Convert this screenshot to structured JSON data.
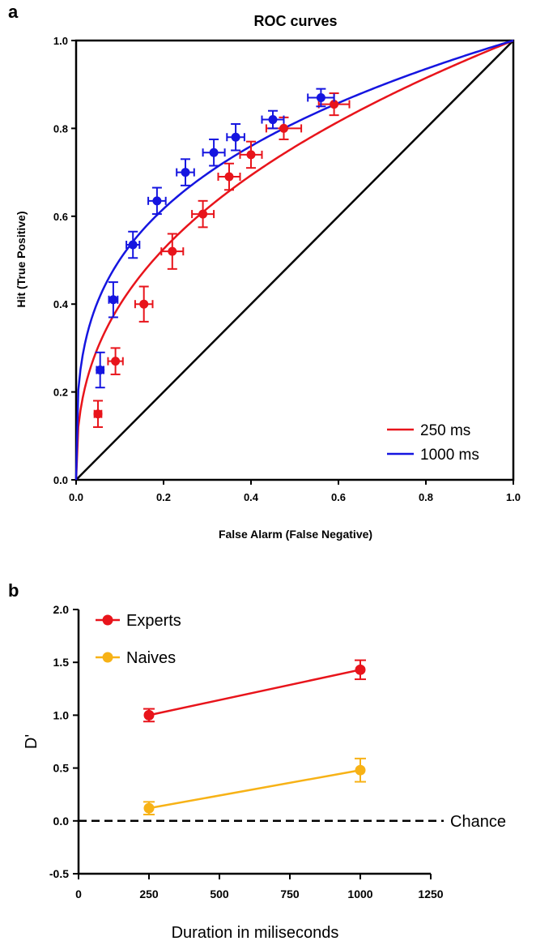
{
  "colors": {
    "red": "#e8141b",
    "blue": "#1515e0",
    "orange": "#f7b216",
    "black": "#000000"
  },
  "chart_data": [
    {
      "panel_label": "a",
      "type": "scatter",
      "title": "ROC curves",
      "xlabel": "False Alarm (False Negative)",
      "ylabel": "Hit (True Positive)",
      "xlim": [
        0,
        1
      ],
      "ylim": [
        0,
        1
      ],
      "xticks": [
        "0.0",
        "0.2",
        "0.4",
        "0.6",
        "0.8",
        "1.0"
      ],
      "yticks": [
        "0.0",
        "0.2",
        "0.4",
        "0.6",
        "0.8",
        "1.0"
      ],
      "legend_position": "bottom-right",
      "diagonal": [
        [
          0,
          0
        ],
        [
          1,
          1
        ]
      ],
      "series": [
        {
          "name": "250 ms",
          "color": "#e8141b",
          "fit_exponent": 0.4,
          "points": [
            {
              "x": 0.05,
              "y": 0.15,
              "xerr": 0.008,
              "yerr": 0.03
            },
            {
              "x": 0.09,
              "y": 0.27,
              "xerr": 0.017,
              "yerr": 0.03
            },
            {
              "x": 0.155,
              "y": 0.4,
              "xerr": 0.02,
              "yerr": 0.04
            },
            {
              "x": 0.22,
              "y": 0.52,
              "xerr": 0.025,
              "yerr": 0.04
            },
            {
              "x": 0.29,
              "y": 0.605,
              "xerr": 0.025,
              "yerr": 0.03
            },
            {
              "x": 0.35,
              "y": 0.69,
              "xerr": 0.025,
              "yerr": 0.03
            },
            {
              "x": 0.4,
              "y": 0.74,
              "xerr": 0.025,
              "yerr": 0.03
            },
            {
              "x": 0.475,
              "y": 0.8,
              "xerr": 0.04,
              "yerr": 0.025
            },
            {
              "x": 0.59,
              "y": 0.855,
              "xerr": 0.035,
              "yerr": 0.025
            }
          ]
        },
        {
          "name": "1000 ms",
          "color": "#1515e0",
          "fit_exponent": 0.3,
          "points": [
            {
              "x": 0.055,
              "y": 0.25,
              "xerr": 0.008,
              "yerr": 0.04
            },
            {
              "x": 0.085,
              "y": 0.41,
              "xerr": 0.01,
              "yerr": 0.04
            },
            {
              "x": 0.13,
              "y": 0.535,
              "xerr": 0.015,
              "yerr": 0.03
            },
            {
              "x": 0.185,
              "y": 0.635,
              "xerr": 0.02,
              "yerr": 0.03
            },
            {
              "x": 0.25,
              "y": 0.7,
              "xerr": 0.02,
              "yerr": 0.03
            },
            {
              "x": 0.315,
              "y": 0.745,
              "xerr": 0.025,
              "yerr": 0.03
            },
            {
              "x": 0.365,
              "y": 0.78,
              "xerr": 0.02,
              "yerr": 0.03
            },
            {
              "x": 0.45,
              "y": 0.82,
              "xerr": 0.025,
              "yerr": 0.02
            },
            {
              "x": 0.56,
              "y": 0.87,
              "xerr": 0.03,
              "yerr": 0.02
            }
          ]
        }
      ]
    },
    {
      "panel_label": "b",
      "type": "line",
      "xlabel": "Duration in miliseconds",
      "ylabel": "D'",
      "xlim": [
        0,
        1250
      ],
      "ylim": [
        -0.5,
        2.0
      ],
      "xticks": [
        "0",
        "250",
        "500",
        "750",
        "1000",
        "1250"
      ],
      "yticks": [
        "-0.5",
        "0.0",
        "0.5",
        "1.0",
        "1.5",
        "2.0"
      ],
      "legend_position": "top-left",
      "chance_level": 0.0,
      "chance_label": "Chance",
      "series": [
        {
          "name": "Experts",
          "color": "#e8141b",
          "x": [
            250,
            1000
          ],
          "y": [
            1.0,
            1.43
          ],
          "yerr": [
            0.06,
            0.09
          ]
        },
        {
          "name": "Naives",
          "color": "#f7b216",
          "x": [
            250,
            1000
          ],
          "y": [
            0.12,
            0.48
          ],
          "yerr": [
            0.06,
            0.11
          ]
        }
      ]
    }
  ]
}
